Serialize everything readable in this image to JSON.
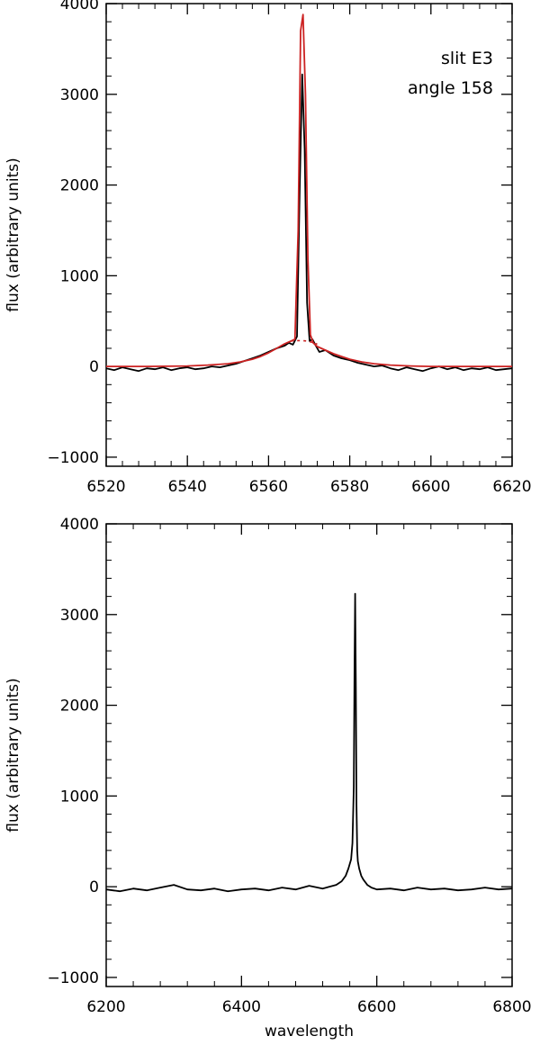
{
  "chart_data": [
    {
      "type": "line",
      "xlabel": "",
      "ylabel": "flux (arbitrary units)",
      "xlim": [
        6520,
        6620
      ],
      "ylim": [
        -1100,
        4000
      ],
      "x_ticks": [
        "6520",
        "6540",
        "6560",
        "6580",
        "6600",
        "6620"
      ],
      "y_ticks": [
        "−1000",
        "0",
        "1000",
        "2000",
        "3000",
        "4000"
      ],
      "annotations": [
        "slit E3",
        "angle 158"
      ],
      "grid": false,
      "series": [
        {
          "color": "#000000",
          "style": "solid",
          "x": [
            6520,
            6522,
            6524,
            6526,
            6528,
            6530,
            6532,
            6534,
            6536,
            6538,
            6540,
            6542,
            6544,
            6546,
            6548,
            6550,
            6552,
            6554,
            6556,
            6558,
            6560,
            6562,
            6564,
            6565,
            6566,
            6567,
            6567.7,
            6568.3,
            6568.9,
            6569.5,
            6570.1,
            6570.8,
            6571.5,
            6572.5,
            6574,
            6576,
            6578,
            6580,
            6582,
            6584,
            6586,
            6588,
            6590,
            6592,
            6594,
            6596,
            6598,
            6600,
            6602,
            6604,
            6606,
            6608,
            6610,
            6612,
            6614,
            6616,
            6618,
            6620
          ],
          "y": [
            -20,
            -40,
            -10,
            -30,
            -50,
            -20,
            -30,
            -10,
            -40,
            -20,
            -10,
            -30,
            -20,
            0,
            -10,
            10,
            30,
            60,
            90,
            120,
            160,
            200,
            230,
            260,
            240,
            330,
            2000,
            3220,
            2400,
            700,
            280,
            300,
            240,
            160,
            180,
            120,
            90,
            70,
            40,
            20,
            0,
            10,
            -20,
            -40,
            -10,
            -30,
            -50,
            -20,
            0,
            -30,
            -10,
            -40,
            -20,
            -30,
            -10,
            -40,
            -30,
            -20
          ]
        },
        {
          "color": "#cc2222",
          "style": "solid",
          "x": [
            6520,
            6530,
            6540,
            6545,
            6550,
            6553,
            6556,
            6558,
            6560,
            6562,
            6564,
            6565.5,
            6566.5,
            6567.3,
            6567.9,
            6568.5,
            6569.1,
            6569.7,
            6570.3,
            6571,
            6572,
            6574,
            6576,
            6578,
            6580,
            6583,
            6586,
            6590,
            6595,
            6600,
            6610,
            6620
          ],
          "y": [
            0,
            0,
            5,
            15,
            30,
            50,
            80,
            110,
            150,
            200,
            250,
            280,
            300,
            1500,
            3700,
            3880,
            3000,
            1200,
            350,
            260,
            220,
            180,
            140,
            110,
            80,
            50,
            30,
            15,
            5,
            0,
            0,
            0
          ]
        },
        {
          "color": "#cc2222",
          "style": "dashed",
          "x": [
            6565.5,
            6566.5,
            6567.3,
            6568,
            6569,
            6570,
            6571,
            6572
          ],
          "y": [
            280,
            285,
            285,
            285,
            282,
            275,
            262,
            245
          ]
        }
      ]
    },
    {
      "type": "line",
      "xlabel": "wavelength",
      "ylabel": "flux (arbitrary units)",
      "xlim": [
        6200,
        6800
      ],
      "ylim": [
        -1100,
        4000
      ],
      "x_ticks": [
        "6200",
        "6400",
        "6600",
        "6800"
      ],
      "y_ticks": [
        "−1000",
        "0",
        "1000",
        "2000",
        "3000",
        "4000"
      ],
      "grid": false,
      "series": [
        {
          "color": "#000000",
          "style": "solid",
          "x": [
            6200,
            6220,
            6240,
            6260,
            6280,
            6300,
            6320,
            6340,
            6360,
            6380,
            6400,
            6420,
            6440,
            6460,
            6480,
            6500,
            6520,
            6530,
            6540,
            6548,
            6554,
            6558,
            6562,
            6564,
            6566,
            6567,
            6568,
            6569,
            6570,
            6571,
            6572,
            6574,
            6577,
            6580,
            6586,
            6592,
            6600,
            6620,
            6640,
            6660,
            6680,
            6700,
            6720,
            6740,
            6760,
            6780,
            6800
          ],
          "y": [
            -30,
            -50,
            -20,
            -40,
            -10,
            20,
            -30,
            -40,
            -20,
            -50,
            -30,
            -20,
            -40,
            -10,
            -30,
            10,
            -20,
            0,
            20,
            60,
            120,
            200,
            300,
            480,
            1100,
            2400,
            3230,
            2200,
            900,
            400,
            280,
            200,
            120,
            80,
            20,
            -10,
            -30,
            -20,
            -40,
            -10,
            -30,
            -20,
            -40,
            -30,
            -10,
            -30,
            -20
          ]
        }
      ]
    }
  ]
}
